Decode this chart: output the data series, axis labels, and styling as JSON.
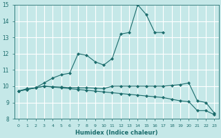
{
  "xlabel": "Humidex (Indice chaleur)",
  "background_color": "#c5e8e8",
  "grid_color": "#b0d8d8",
  "line_color": "#1a6b6b",
  "x_values": [
    0,
    1,
    2,
    3,
    4,
    5,
    6,
    7,
    8,
    9,
    10,
    11,
    12,
    13,
    14,
    15,
    16,
    17,
    18,
    19,
    20,
    21,
    22,
    23
  ],
  "series1": [
    9.7,
    9.85,
    9.9,
    10.2,
    10.5,
    10.7,
    10.8,
    12.0,
    11.9,
    11.5,
    11.3,
    11.7,
    13.2,
    13.3,
    15.0,
    14.4,
    13.3,
    13.3,
    null,
    null,
    null,
    null,
    null,
    null
  ],
  "series2": [
    9.7,
    9.8,
    9.9,
    10.0,
    9.95,
    9.9,
    9.85,
    9.8,
    9.75,
    9.7,
    9.65,
    9.6,
    9.55,
    9.5,
    9.45,
    9.4,
    9.35,
    9.3,
    9.2,
    9.1,
    9.05,
    8.5,
    8.5,
    8.25
  ],
  "series3": [
    9.7,
    9.8,
    9.9,
    10.0,
    9.97,
    9.95,
    9.92,
    9.9,
    9.9,
    9.88,
    9.85,
    10.0,
    10.0,
    10.0,
    10.0,
    10.0,
    10.0,
    10.0,
    10.05,
    10.1,
    10.2,
    9.1,
    9.0,
    8.35
  ],
  "ylim": [
    8,
    15
  ],
  "xlim": [
    -0.5,
    23.5
  ],
  "yticks": [
    8,
    9,
    10,
    11,
    12,
    13,
    14,
    15
  ],
  "xticks": [
    0,
    1,
    2,
    3,
    4,
    5,
    6,
    7,
    8,
    9,
    10,
    11,
    12,
    13,
    14,
    15,
    16,
    17,
    18,
    19,
    20,
    21,
    22,
    23
  ]
}
